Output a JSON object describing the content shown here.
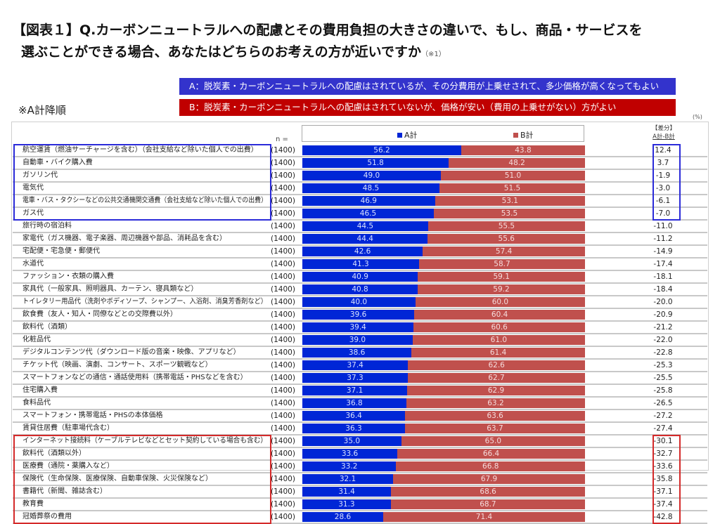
{
  "title": {
    "line1": "【図表１】Q.カーボンニュートラルへの配慮とその費用負担の大きさの違いで、もし、商品・サービスを",
    "line2": "選ぶことができる場合、あなたはどちらのお考えの方が近いですか",
    "note": "（※1）"
  },
  "options": {
    "A": "A：脱炭素・カーボンニュートラルへの配慮はされているが、その分費用が上乗せされて、多少価格が高くなってもよい",
    "B": "B：脱炭素・カーボンニュートラルへの配慮はされていないが、価格が安い（費用の上乗せがない）方がよい"
  },
  "sort_note": "※A計降順",
  "unit": "(%)",
  "n_header": "n =",
  "diff_header": {
    "line1": "【差分】",
    "line2": "A計-B計"
  },
  "colors": {
    "A": "#0026d6",
    "B": "#c0504d",
    "highlight_top": "#2b2bd9",
    "highlight_bottom": "#d42a2a"
  },
  "chart_data": {
    "type": "bar",
    "orientation": "horizontal-stacked-100",
    "title": "カーボンニュートラルへの配慮と費用負担に関する選好（項目別）",
    "xlabel": "",
    "ylabel": "",
    "xlim": [
      0,
      100
    ],
    "legend": {
      "position": "top",
      "entries": [
        "A計",
        "B計"
      ]
    },
    "categories": [
      "航空運賃（燃油サーチャージを含む）（会社支給など除いた個人での出費）",
      "自動車・バイク購入費",
      "ガソリン代",
      "電気代",
      "電車・バス・タクシーなどの公共交通機関交通費（会社支給など除いた個人での出費）",
      "ガス代",
      "旅行時の宿泊料",
      "家電代（ガス機器、電子楽器、周辺機器や部品、消耗品を含む）",
      "宅配便・宅急便・郵便代",
      "水道代",
      "ファッション・衣類の購入費",
      "家具代（一般家具、照明器具、カーテン、寝具類など）",
      "トイレタリー用品代（洗剤やボディソープ、シャンプー、入浴剤、消臭芳香剤など）",
      "飲食費（友人・知人・同僚などとの交際費以外）",
      "飲料代（酒類）",
      "化粧品代",
      "デジタルコンテンツ代（ダウンロード版の音楽・映像、アプリなど）",
      "チケット代（映画、演劇、コンサート、スポーツ観戦など）",
      "スマートフォンなどの通信・通話使用料（携帯電話・PHSなどを含む）",
      "住宅購入費",
      "食料品代",
      "スマートフォン・携帯電話・PHSの本体価格",
      "賃貸住居費（駐車場代含む）",
      "インターネット接続料（ケーブルテレビなどとセット契約している場合も含む）",
      "飲料代（酒類以外）",
      "医療費（通院・薬購入など）",
      "保険代（生命保険、医療保険、自動車保険、火災保険など）",
      "書籍代（新聞、雑誌含む）",
      "教育費",
      "冠婚葬祭の費用"
    ],
    "n": [
      "(1400)",
      "(1400)",
      "(1400)",
      "(1400)",
      "(1400)",
      "(1400)",
      "(1400)",
      "(1400)",
      "(1400)",
      "(1400)",
      "(1400)",
      "(1400)",
      "(1400)",
      "(1400)",
      "(1400)",
      "(1400)",
      "(1400)",
      "(1400)",
      "(1400)",
      "(1400)",
      "(1400)",
      "(1400)",
      "(1400)",
      "(1400)",
      "(1400)",
      "(1400)",
      "(1400)",
      "(1400)",
      "(1400)",
      "(1400)"
    ],
    "series": [
      {
        "name": "A計",
        "values": [
          56.2,
          51.8,
          49.0,
          48.5,
          46.9,
          46.5,
          44.5,
          44.4,
          42.6,
          41.3,
          40.9,
          40.8,
          40.0,
          39.6,
          39.4,
          39.0,
          38.6,
          37.4,
          37.3,
          37.1,
          36.8,
          36.4,
          36.3,
          35.0,
          33.6,
          33.2,
          32.1,
          31.4,
          31.3,
          28.6
        ]
      },
      {
        "name": "B計",
        "values": [
          43.8,
          48.2,
          51.0,
          51.5,
          53.1,
          53.5,
          55.5,
          55.6,
          57.4,
          58.7,
          59.1,
          59.2,
          60.0,
          60.4,
          60.6,
          61.0,
          61.4,
          62.6,
          62.7,
          62.9,
          63.2,
          63.6,
          63.7,
          65.0,
          66.4,
          66.8,
          67.9,
          68.6,
          68.7,
          71.4
        ]
      }
    ],
    "diff": [
      "12.4",
      "3.7",
      "-1.9",
      "-3.0",
      "-6.1",
      "-7.0",
      "-11.0",
      "-11.2",
      "-14.9",
      "-17.4",
      "-18.1",
      "-18.4",
      "-20.0",
      "-20.9",
      "-21.2",
      "-22.0",
      "-22.8",
      "-25.3",
      "-25.5",
      "-25.8",
      "-26.5",
      "-27.2",
      "-27.4",
      "-30.1",
      "-32.7",
      "-33.6",
      "-35.8",
      "-37.1",
      "-37.4",
      "-42.8"
    ],
    "highlight_groups": [
      {
        "name": "top",
        "rows": [
          0,
          5
        ]
      },
      {
        "name": "bottom",
        "rows": [
          23,
          29
        ]
      }
    ]
  }
}
